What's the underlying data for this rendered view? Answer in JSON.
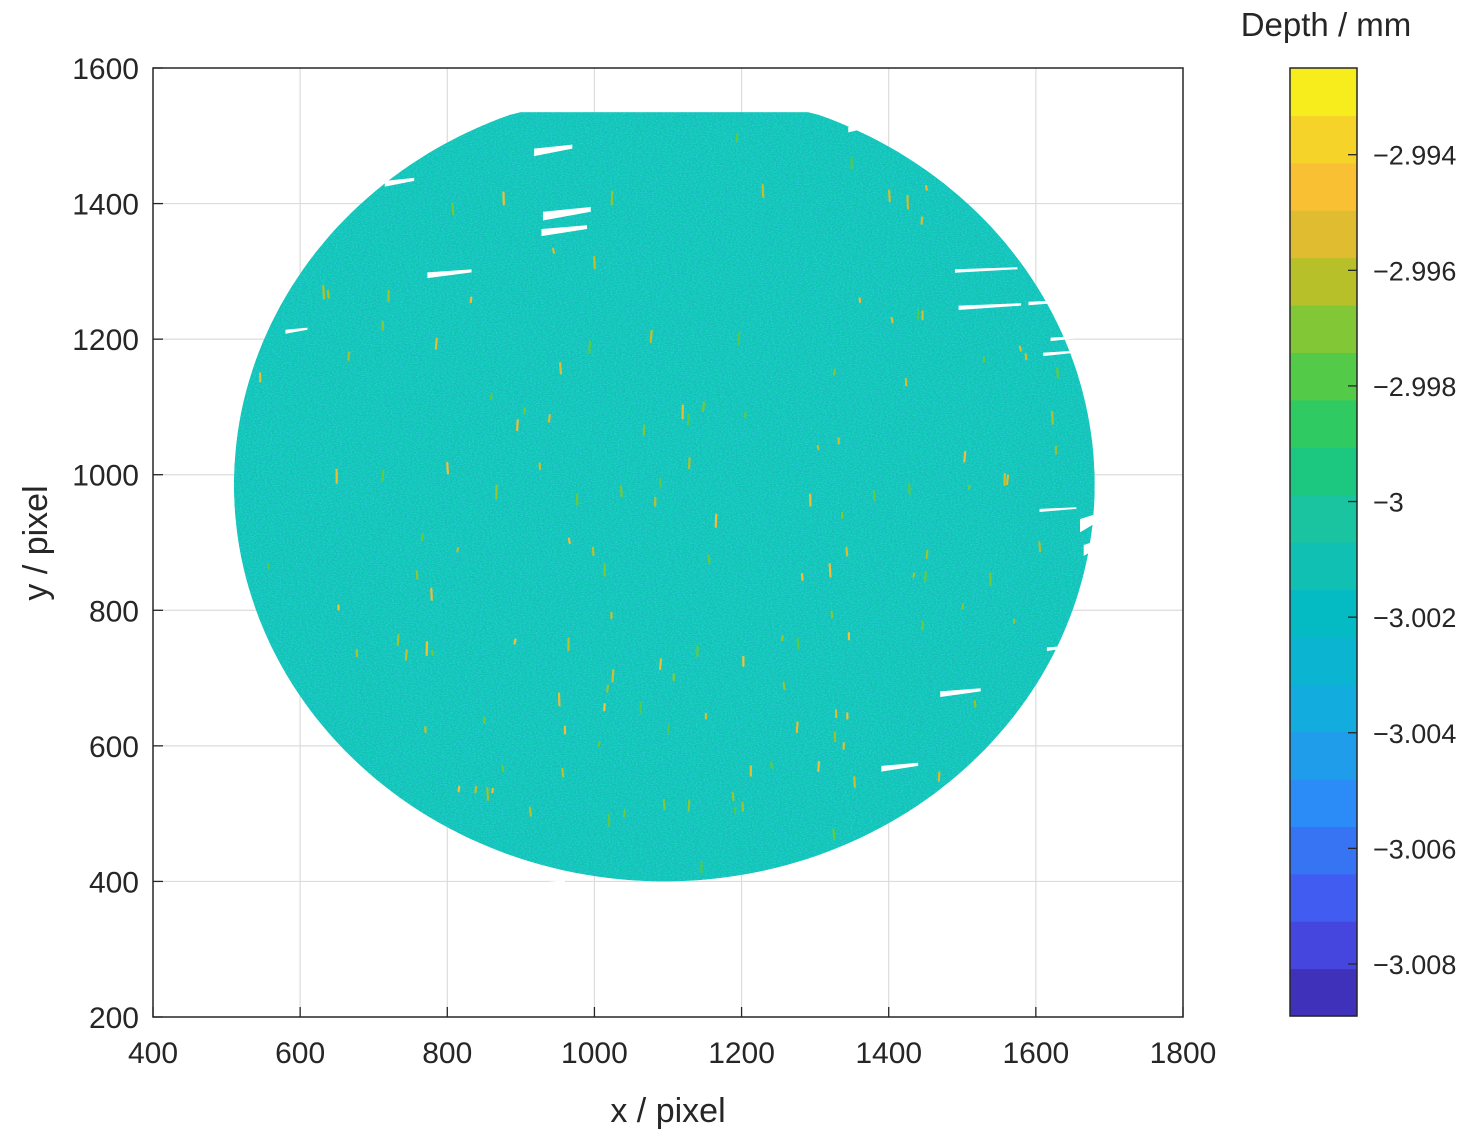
{
  "chart_data": {
    "type": "heatmap",
    "title": "",
    "xlabel": "x / pixel",
    "ylabel": "y / pixel",
    "xlim": [
      400,
      1800
    ],
    "ylim": [
      200,
      1600
    ],
    "x_ticks": [
      "400",
      "600",
      "800",
      "1000",
      "1200",
      "1400",
      "1600",
      "1800"
    ],
    "y_ticks": [
      "200",
      "400",
      "600",
      "800",
      "1000",
      "1200",
      "1400",
      "1600"
    ],
    "grid": true,
    "region": {
      "shape": "circle",
      "center_x": 1095,
      "center_y": 985,
      "radius": 585,
      "flat_top_y": 1535,
      "flat_top_x_range": [
        815,
        1345
      ],
      "flat_bottom_y": 375,
      "predominant_depth": -3.001
    },
    "colorbar": {
      "label": "Depth / mm",
      "range": [
        -3.0089,
        -2.9925
      ],
      "ticks": [
        "−2.994",
        "−2.996",
        "−2.998",
        "−3",
        "−3.002",
        "−3.004",
        "−3.006",
        "−3.008"
      ],
      "tick_values": [
        -2.994,
        -2.996,
        -2.998,
        -3.0,
        -3.002,
        -3.004,
        -3.006,
        -3.008
      ],
      "colormap": "parula",
      "levels": 20
    },
    "missing_data_gaps": [
      {
        "x": [
          715,
          755
        ],
        "y": [
          1425,
          1438
        ]
      },
      {
        "x": [
          918,
          970
        ],
        "y": [
          1470,
          1487
        ]
      },
      {
        "x": [
          930,
          995
        ],
        "y": [
          1375,
          1395
        ]
      },
      {
        "x": [
          928,
          990
        ],
        "y": [
          1352,
          1368
        ]
      },
      {
        "x": [
          773,
          833
        ],
        "y": [
          1290,
          1303
        ]
      },
      {
        "x": [
          580,
          610
        ],
        "y": [
          1208,
          1217
        ]
      },
      {
        "x": [
          1345,
          1375
        ],
        "y": [
          1505,
          1517
        ]
      },
      {
        "x": [
          1490,
          1575
        ],
        "y": [
          1298,
          1306
        ]
      },
      {
        "x": [
          1495,
          1580
        ],
        "y": [
          1243,
          1253
        ]
      },
      {
        "x": [
          1590,
          1650
        ],
        "y": [
          1250,
          1258
        ]
      },
      {
        "x": [
          1620,
          1665
        ],
        "y": [
          1197,
          1205
        ]
      },
      {
        "x": [
          1610,
          1655
        ],
        "y": [
          1175,
          1183
        ]
      },
      {
        "x": [
          1605,
          1655
        ],
        "y": [
          945,
          952
        ]
      },
      {
        "x": [
          1660,
          1690
        ],
        "y": [
          915,
          945
        ]
      },
      {
        "x": [
          1665,
          1690
        ],
        "y": [
          880,
          905
        ]
      },
      {
        "x": [
          1615,
          1650
        ],
        "y": [
          740,
          748
        ]
      },
      {
        "x": [
          1470,
          1525
        ],
        "y": [
          672,
          685
        ]
      },
      {
        "x": [
          1390,
          1440
        ],
        "y": [
          562,
          575
        ]
      },
      {
        "x": [
          930,
          960
        ],
        "y": [
          392,
          402
        ]
      }
    ],
    "high_depth_streaks": "scattered yellow/orange streaks, concentrated toward the lower half (y 400–700)"
  }
}
